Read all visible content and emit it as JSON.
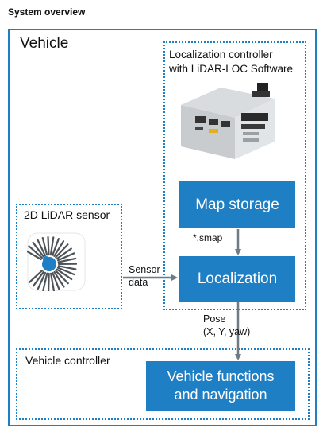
{
  "title": "System overview",
  "vehicle": {
    "label": "Vehicle"
  },
  "localization_controller": {
    "label_line1": "Localization controller",
    "label_line2": "with LiDAR-LOC Software",
    "hardware_image": "controller-hardware-image"
  },
  "map_storage": {
    "label": "Map storage"
  },
  "localization": {
    "label": "Localization"
  },
  "lidar_sensor": {
    "label": "2D LiDAR sensor",
    "icon": "lidar-sensor-icon"
  },
  "vehicle_controller": {
    "label": "Vehicle controller"
  },
  "vehicle_functions": {
    "line1": "Vehicle functions",
    "line2": "and navigation"
  },
  "connectors": {
    "smap": "*.smap",
    "sensor_line1": "Sensor",
    "sensor_line2": "data",
    "pose_line1": "Pose",
    "pose_line2": "(X, Y, yaw)"
  },
  "colors": {
    "accent": "#1f7fc4",
    "arrow": "#6f7b84",
    "text": "#111111"
  }
}
